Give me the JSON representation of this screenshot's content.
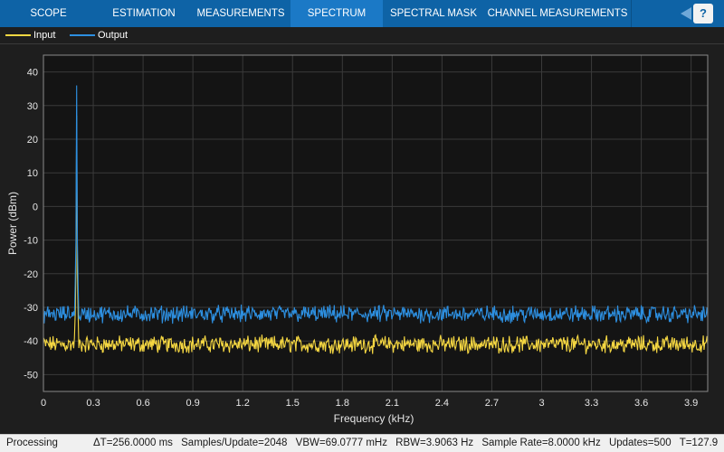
{
  "toolstrip": {
    "tabs": [
      {
        "label": "SCOPE"
      },
      {
        "label": "ESTIMATION"
      },
      {
        "label": "MEASUREMENTS"
      },
      {
        "label": "SPECTRUM"
      },
      {
        "label": "SPECTRAL MASK"
      },
      {
        "label": "CHANNEL MEASUREMENTS"
      }
    ],
    "active_tab": "SPECTRUM",
    "help_label": "?"
  },
  "legend": {
    "items": [
      {
        "label": "Input",
        "color": "#f5d742"
      },
      {
        "label": "Output",
        "color": "#2d8fe0"
      }
    ]
  },
  "colors": {
    "accent": "#0e63a6",
    "active_tab": "#1b79c6",
    "plot_bg": "#141414",
    "grid": "#3a3a3a",
    "input_series": "#f5d742",
    "output_series": "#2d8fe0"
  },
  "chart_data": {
    "type": "line",
    "xlabel": "Frequency (kHz)",
    "ylabel": "Power (dBm)",
    "xlim": [
      0,
      4.0
    ],
    "ylim": [
      -55,
      45
    ],
    "xticks": [
      "0",
      "0.3",
      "0.6",
      "0.9",
      "1.2",
      "1.5",
      "1.8",
      "2.1",
      "2.4",
      "2.7",
      "3",
      "3.3",
      "3.6",
      "3.9"
    ],
    "yticks": [
      "40",
      "30",
      "20",
      "10",
      "0",
      "-10",
      "-20",
      "-30",
      "-40",
      "-50"
    ],
    "grid": true,
    "legend_position": "top-left",
    "series": [
      {
        "name": "Input",
        "color": "#f5d742",
        "noise_floor": -41,
        "peak_freq": 0.2,
        "peak_power": 27
      },
      {
        "name": "Output",
        "color": "#2d8fe0",
        "noise_floor": -32,
        "peak_freq": 0.2,
        "peak_power": 36
      }
    ]
  },
  "status": {
    "state": "Processing",
    "fields": [
      "ΔT=256.0000 ms",
      "Samples/Update=2048",
      "VBW=69.0777 mHz",
      "RBW=3.9063 Hz",
      "Sample Rate=8.0000 kHz",
      "Updates=500",
      "T=127.9"
    ]
  }
}
